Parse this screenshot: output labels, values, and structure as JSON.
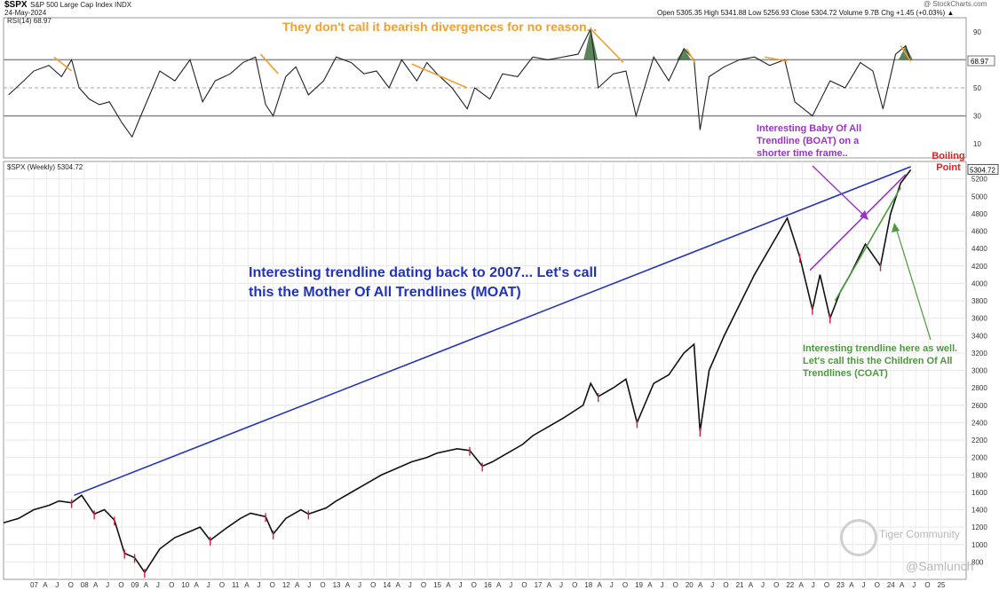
{
  "header": {
    "symbol": "$SPX",
    "name": "S&P 500 Large Cap Index  INDX",
    "date": "24-May-2024",
    "ohlc": "Open 5305.35  High 5341.88  Low 5256.93  Close 5304.72  Volume 9.7B  Chg +1.45 (+0.03%) ▲",
    "brand": "@ StockCharts.com"
  },
  "rsi_panel_label": "RSI(14) 68.97",
  "price_panel_label": "$SPX (Weekly) 5304.72",
  "annotations": {
    "divergence": "They don't call it bearish divergences for no reason...",
    "moat": "Interesting trendline dating back to 2007... Let's call this the Mother Of All Trendlines (MOAT)",
    "boat": "Interesting Baby Of All Trendline (BOAT) on a shorter time frame..",
    "boiling": "Boiling Point",
    "coat": "Interesting trendline here as well. Let's call this the Children Of All Trendlines (COAT)"
  },
  "watermark": {
    "community": "Tiger Community",
    "handle": "@Samlunch"
  },
  "colors": {
    "moat": "#2233bb",
    "boat": "#9933cc",
    "coat": "#4b9a3c",
    "divergence": "#f0a030",
    "price": "#111111",
    "down": "#cc2244",
    "rsi_fill": "#3f6f3f"
  },
  "chart_data": [
    {
      "type": "line",
      "title": "RSI(14)",
      "current": 68.97,
      "current_label": "68.97",
      "ylim": [
        0,
        100
      ],
      "yticks": [
        "10",
        "30",
        "50",
        "70",
        "90"
      ],
      "reference_lines": [
        70,
        50,
        30
      ],
      "x": [
        2006.5,
        2006.8,
        2007.0,
        2007.3,
        2007.55,
        2007.75,
        2007.9,
        2008.1,
        2008.3,
        2008.5,
        2008.75,
        2008.95,
        2009.1,
        2009.3,
        2009.5,
        2009.8,
        2010.1,
        2010.35,
        2010.6,
        2010.9,
        2011.15,
        2011.4,
        2011.6,
        2011.75,
        2012.0,
        2012.2,
        2012.45,
        2012.75,
        2013.0,
        2013.3,
        2013.55,
        2013.8,
        2014.05,
        2014.3,
        2014.6,
        2014.8,
        2015.0,
        2015.3,
        2015.6,
        2015.75,
        2016.05,
        2016.3,
        2016.6,
        2016.9,
        2017.2,
        2017.5,
        2017.8,
        2018.05,
        2018.2,
        2018.5,
        2018.75,
        2018.95,
        2019.3,
        2019.6,
        2019.9,
        2020.1,
        2020.22,
        2020.4,
        2020.7,
        2021.0,
        2021.3,
        2021.6,
        2021.9,
        2022.1,
        2022.45,
        2022.8,
        2023.1,
        2023.4,
        2023.65,
        2023.85,
        2024.1,
        2024.3,
        2024.4
      ],
      "values": [
        45,
        55,
        62,
        66,
        58,
        70,
        50,
        42,
        38,
        40,
        25,
        15,
        28,
        45,
        62,
        55,
        70,
        40,
        55,
        60,
        68,
        72,
        38,
        30,
        58,
        65,
        45,
        55,
        72,
        68,
        60,
        62,
        50,
        70,
        55,
        68,
        60,
        50,
        35,
        50,
        42,
        60,
        58,
        72,
        70,
        72,
        74,
        92,
        50,
        60,
        62,
        30,
        72,
        55,
        78,
        70,
        20,
        58,
        65,
        70,
        72,
        66,
        70,
        40,
        30,
        55,
        50,
        68,
        62,
        35,
        74,
        80,
        69
      ]
    },
    {
      "type": "line",
      "title": "$SPX (Weekly)",
      "current": 5304.72,
      "current_label": "5304.72",
      "ylim": [
        600,
        5400
      ],
      "yticks": [
        "800",
        "1000",
        "1200",
        "1400",
        "1600",
        "1800",
        "2000",
        "2200",
        "2400",
        "2600",
        "2800",
        "3000",
        "3200",
        "3400",
        "3600",
        "3800",
        "4000",
        "4200",
        "4400",
        "4600",
        "4800",
        "5000",
        "5200"
      ],
      "xlim": [
        2006.4,
        2025.5
      ],
      "xticks": [
        "07",
        "A",
        "J",
        "O",
        "08",
        "A",
        "J",
        "O",
        "09",
        "A",
        "J",
        "O",
        "10",
        "A",
        "J",
        "O",
        "11",
        "A",
        "J",
        "O",
        "12",
        "A",
        "J",
        "O",
        "13",
        "A",
        "J",
        "O",
        "14",
        "A",
        "J",
        "O",
        "15",
        "A",
        "J",
        "O",
        "16",
        "A",
        "J",
        "O",
        "17",
        "A",
        "J",
        "O",
        "18",
        "A",
        "J",
        "O",
        "19",
        "A",
        "J",
        "O",
        "20",
        "A",
        "J",
        "O",
        "21",
        "A",
        "J",
        "O",
        "22",
        "A",
        "J",
        "O",
        "23",
        "A",
        "J",
        "O",
        "24",
        "A",
        "J",
        "O",
        "25"
      ],
      "x": [
        2006.4,
        2006.7,
        2007.0,
        2007.3,
        2007.5,
        2007.75,
        2007.95,
        2008.2,
        2008.4,
        2008.6,
        2008.8,
        2009.0,
        2009.2,
        2009.5,
        2009.8,
        2010.1,
        2010.3,
        2010.5,
        2010.8,
        2011.1,
        2011.3,
        2011.6,
        2011.75,
        2012.0,
        2012.3,
        2012.45,
        2012.8,
        2013.0,
        2013.3,
        2013.6,
        2013.9,
        2014.1,
        2014.5,
        2014.8,
        2015.0,
        2015.4,
        2015.65,
        2015.9,
        2016.1,
        2016.4,
        2016.7,
        2016.9,
        2017.2,
        2017.5,
        2017.9,
        2018.05,
        2018.2,
        2018.5,
        2018.75,
        2018.97,
        2019.3,
        2019.6,
        2019.9,
        2020.1,
        2020.22,
        2020.4,
        2020.7,
        2021.0,
        2021.3,
        2021.6,
        2021.95,
        2022.2,
        2022.45,
        2022.6,
        2022.8,
        2023.0,
        2023.2,
        2023.5,
        2023.8,
        2024.0,
        2024.2,
        2024.4
      ],
      "values": [
        1250,
        1300,
        1400,
        1450,
        1500,
        1480,
        1565,
        1350,
        1400,
        1280,
        900,
        850,
        680,
        950,
        1080,
        1150,
        1200,
        1050,
        1180,
        1300,
        1360,
        1320,
        1120,
        1300,
        1400,
        1350,
        1420,
        1500,
        1600,
        1700,
        1800,
        1850,
        1950,
        2000,
        2050,
        2100,
        2080,
        1900,
        1950,
        2050,
        2150,
        2250,
        2350,
        2450,
        2600,
        2850,
        2700,
        2800,
        2900,
        2400,
        2850,
        2950,
        3200,
        3300,
        2300,
        3000,
        3400,
        3750,
        4100,
        4400,
        4750,
        4300,
        3700,
        4100,
        3600,
        3900,
        4100,
        4450,
        4200,
        4800,
        5150,
        5304.72
      ]
    },
    {
      "type": "trendlines",
      "lines": [
        {
          "name": "MOAT",
          "from": [
            2007.8,
            1565
          ],
          "to": [
            2024.4,
            5340
          ]
        },
        {
          "name": "BOAT",
          "from": [
            2022.4,
            4150
          ],
          "to": [
            2024.3,
            5250
          ]
        },
        {
          "name": "COAT",
          "from": [
            2022.9,
            3800
          ],
          "to": [
            2024.2,
            5100
          ]
        }
      ]
    }
  ]
}
